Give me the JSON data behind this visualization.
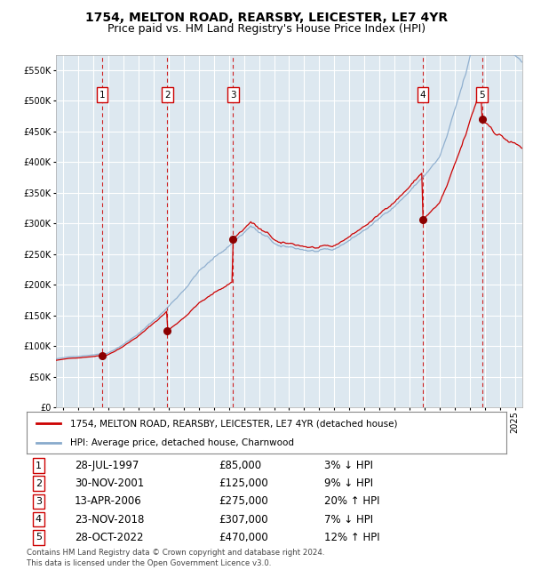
{
  "title": "1754, MELTON ROAD, REARSBY, LEICESTER, LE7 4YR",
  "subtitle": "Price paid vs. HM Land Registry's House Price Index (HPI)",
  "legend_line1": "1754, MELTON ROAD, REARSBY, LEICESTER, LE7 4YR (detached house)",
  "legend_line2": "HPI: Average price, detached house, Charnwood",
  "footer1": "Contains HM Land Registry data © Crown copyright and database right 2024.",
  "footer2": "This data is licensed under the Open Government Licence v3.0.",
  "transactions": [
    {
      "num": 1,
      "date": "28-JUL-1997",
      "price": 85000,
      "pct": "3%",
      "dir": "↓",
      "year": 1997.57
    },
    {
      "num": 2,
      "date": "30-NOV-2001",
      "price": 125000,
      "pct": "9%",
      "dir": "↓",
      "year": 2001.91
    },
    {
      "num": 3,
      "date": "13-APR-2006",
      "price": 275000,
      "pct": "20%",
      "dir": "↑",
      "year": 2006.28
    },
    {
      "num": 4,
      "date": "23-NOV-2018",
      "price": 307000,
      "pct": "7%",
      "dir": "↓",
      "year": 2018.89
    },
    {
      "num": 5,
      "date": "28-OCT-2022",
      "price": 470000,
      "pct": "12%",
      "dir": "↑",
      "year": 2022.82
    }
  ],
  "ylim": [
    0,
    575000
  ],
  "yticks": [
    0,
    50000,
    100000,
    150000,
    200000,
    250000,
    300000,
    350000,
    400000,
    450000,
    500000,
    550000
  ],
  "xlim_start": 1994.5,
  "xlim_end": 2025.5,
  "red_line_color": "#cc0000",
  "blue_line_color": "#88aacc",
  "marker_color": "#8b0000",
  "dashed_line_color": "#cc0000",
  "background_color": "#dde8f0",
  "grid_color": "#ffffff",
  "box_border_color": "#cc0000",
  "title_fontsize": 10,
  "subtitle_fontsize": 9
}
